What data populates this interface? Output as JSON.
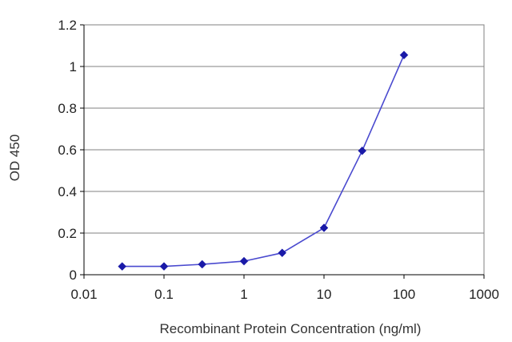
{
  "chart_data": {
    "type": "line",
    "title": "",
    "xlabel": "Recombinant Protein Concentration (ng/ml)",
    "ylabel": "OD 450",
    "xscale": "log",
    "xlim": [
      0.01,
      1000
    ],
    "ylim": [
      0,
      1.2
    ],
    "x_tick_labels": [
      "0.01",
      "0.1",
      "1",
      "10",
      "100",
      "1000"
    ],
    "y_tick_labels": [
      "0",
      "0.2",
      "0.4",
      "0.6",
      "0.8",
      "1",
      "1.2"
    ],
    "grid": "horizontal",
    "legend": "none",
    "series": [
      {
        "x": [
          0.03,
          0.1,
          0.3,
          1,
          3,
          10,
          30,
          100
        ],
        "y": [
          0.04,
          0.04,
          0.05,
          0.065,
          0.105,
          0.225,
          0.595,
          1.055
        ],
        "color": "#1a1aa8",
        "marker": "diamond",
        "line_color": "#4a4acf"
      }
    ]
  }
}
